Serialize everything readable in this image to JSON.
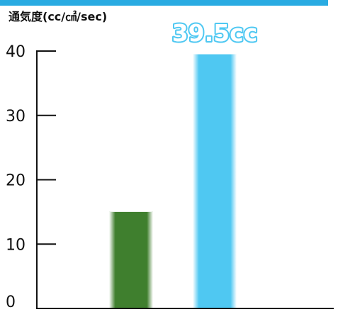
{
  "chart_data": {
    "type": "bar",
    "ylabel": "通気度(cc/㎠/sec)",
    "ylim": [
      0,
      40
    ],
    "yticks": [
      0,
      10,
      20,
      30,
      40
    ],
    "grid": false,
    "series": [
      {
        "value": 15,
        "color": "#3f7f2e",
        "label": ""
      },
      {
        "value": 39.5,
        "color": "#4fc8f2",
        "label": "39.5cc"
      }
    ]
  },
  "colors": {
    "top_bar": "#29abe2",
    "axis": "#111111",
    "value_label_outline": "#4fc8f2"
  }
}
